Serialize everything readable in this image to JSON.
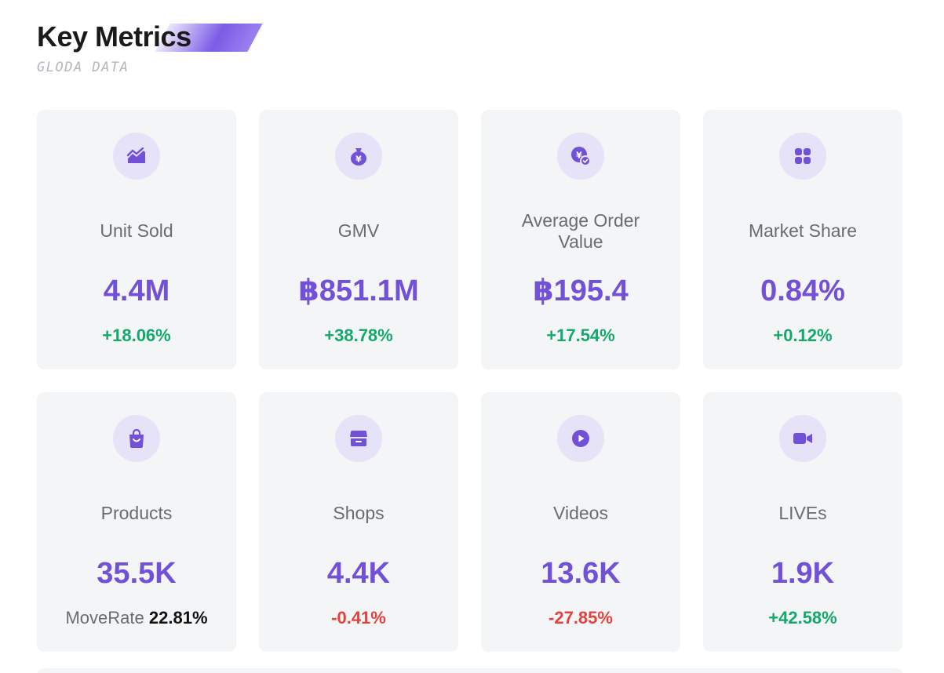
{
  "header": {
    "title": "Key Metrics",
    "subtitle": "GLODA DATA"
  },
  "colors": {
    "accent": "#7251d8",
    "icon_bg": "#e6e2f7",
    "card_bg": "#f4f5f7",
    "positive": "#14a86a",
    "negative": "#e8403c"
  },
  "metrics": [
    {
      "label": "Unit Sold",
      "value": "4.4M",
      "change": "+18.06%",
      "icon": "trend-chart-icon"
    },
    {
      "label": "GMV",
      "value": "฿851.1M",
      "change": "+38.78%",
      "icon": "money-bag-icon"
    },
    {
      "label": "Average Order Value",
      "value": "฿195.4",
      "change": "+17.54%",
      "icon": "yen-coin-icon"
    },
    {
      "label": "Market Share",
      "value": "0.84%",
      "change": "+0.12%",
      "icon": "grid-apps-icon"
    },
    {
      "label": "Products",
      "value": "35.5K",
      "moverate_label": "MoveRate",
      "moverate_value": "22.81%",
      "icon": "shopping-bag-icon"
    },
    {
      "label": "Shops",
      "value": "4.4K",
      "change": "-0.41%",
      "icon": "store-icon"
    },
    {
      "label": "Videos",
      "value": "13.6K",
      "change": "-27.85%",
      "icon": "play-icon"
    },
    {
      "label": "LIVEs",
      "value": "1.9K",
      "change": "+42.58%",
      "icon": "video-camera-icon"
    }
  ]
}
